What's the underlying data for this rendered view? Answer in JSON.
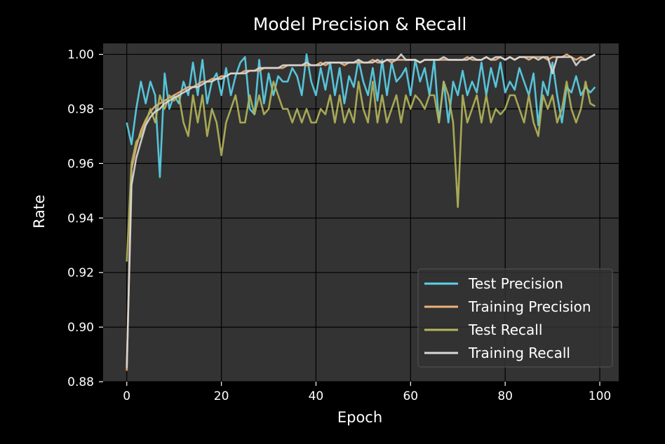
{
  "chart_data": {
    "type": "line",
    "title": "Model Precision & Recall",
    "xlabel": "Epoch",
    "ylabel": "Rate",
    "xlim": [
      -5,
      104
    ],
    "ylim": [
      0.88,
      1.004
    ],
    "xticks": [
      0,
      20,
      40,
      60,
      80,
      100
    ],
    "xtick_labels": [
      "0",
      "20",
      "40",
      "60",
      "80",
      "100"
    ],
    "yticks": [
      0.88,
      0.9,
      0.92,
      0.94,
      0.96,
      0.98,
      1.0
    ],
    "ytick_labels": [
      "0.88",
      "0.90",
      "0.92",
      "0.94",
      "0.96",
      "0.98",
      "1.00"
    ],
    "grid": true,
    "legend_position": "lower-right",
    "background": "#333333",
    "figure_background": "#000000",
    "x": [
      0,
      1,
      2,
      3,
      4,
      5,
      6,
      7,
      8,
      9,
      10,
      11,
      12,
      13,
      14,
      15,
      16,
      17,
      18,
      19,
      20,
      21,
      22,
      23,
      24,
      25,
      26,
      27,
      28,
      29,
      30,
      31,
      32,
      33,
      34,
      35,
      36,
      37,
      38,
      39,
      40,
      41,
      42,
      43,
      44,
      45,
      46,
      47,
      48,
      49,
      50,
      51,
      52,
      53,
      54,
      55,
      56,
      57,
      58,
      59,
      60,
      61,
      62,
      63,
      64,
      65,
      66,
      67,
      68,
      69,
      70,
      71,
      72,
      73,
      74,
      75,
      76,
      77,
      78,
      79,
      80,
      81,
      82,
      83,
      84,
      85,
      86,
      87,
      88,
      89,
      90,
      91,
      92,
      93,
      94,
      95,
      96,
      97,
      98,
      99
    ],
    "series": [
      {
        "name": "Test Precision",
        "color": "#5bd3ea",
        "values": [
          0.975,
          0.967,
          0.98,
          0.99,
          0.982,
          0.99,
          0.985,
          0.955,
          0.993,
          0.98,
          0.985,
          0.982,
          0.99,
          0.985,
          0.997,
          0.985,
          0.998,
          0.982,
          0.99,
          0.993,
          0.985,
          0.995,
          0.985,
          0.992,
          0.997,
          0.999,
          0.98,
          0.978,
          0.998,
          0.982,
          0.993,
          0.985,
          0.992,
          0.99,
          0.99,
          0.995,
          0.992,
          0.985,
          1.0,
          0.99,
          0.985,
          0.995,
          0.987,
          0.997,
          0.985,
          0.995,
          0.982,
          0.992,
          0.988,
          0.998,
          0.99,
          0.985,
          0.995,
          0.983,
          0.998,
          0.985,
          0.997,
          0.99,
          0.992,
          0.995,
          0.985,
          0.998,
          0.99,
          0.995,
          0.985,
          0.998,
          0.975,
          0.99,
          0.975,
          0.99,
          0.985,
          0.994,
          0.985,
          0.99,
          0.986,
          0.997,
          0.985,
          0.995,
          0.988,
          0.997,
          0.986,
          0.99,
          0.987,
          0.995,
          0.99,
          0.985,
          0.993,
          0.974,
          0.99,
          0.985,
          0.997,
          0.985,
          0.975,
          0.988,
          0.986,
          0.992,
          0.985,
          0.988,
          0.986,
          0.988
        ]
      },
      {
        "name": "Training Precision",
        "color": "#f0b27a",
        "values": [
          0.884,
          0.958,
          0.966,
          0.972,
          0.976,
          0.979,
          0.981,
          0.982,
          0.983,
          0.984,
          0.985,
          0.986,
          0.987,
          0.988,
          0.988,
          0.989,
          0.99,
          0.99,
          0.991,
          0.991,
          0.992,
          0.992,
          0.993,
          0.993,
          0.993,
          0.994,
          0.994,
          0.994,
          0.994,
          0.995,
          0.995,
          0.995,
          0.995,
          0.995,
          0.996,
          0.996,
          0.996,
          0.996,
          0.996,
          0.996,
          0.996,
          0.997,
          0.996,
          0.997,
          0.997,
          0.997,
          0.996,
          0.997,
          0.997,
          0.997,
          0.997,
          0.997,
          0.998,
          0.997,
          0.997,
          0.998,
          0.997,
          0.998,
          0.998,
          0.998,
          0.998,
          0.998,
          0.997,
          0.998,
          0.998,
          0.998,
          0.998,
          0.998,
          0.998,
          0.998,
          0.998,
          0.998,
          0.999,
          0.998,
          0.998,
          0.998,
          0.999,
          0.998,
          0.998,
          0.999,
          0.998,
          0.999,
          0.998,
          0.999,
          0.999,
          0.998,
          0.999,
          0.999,
          0.999,
          0.998,
          0.999,
          0.999,
          0.999,
          1.0,
          0.999,
          0.998,
          0.999,
          0.998,
          0.999,
          1.0
        ]
      },
      {
        "name": "Test Recall",
        "color": "#b5b55a",
        "values": [
          0.924,
          0.96,
          0.968,
          0.97,
          0.975,
          0.98,
          0.975,
          0.985,
          0.98,
          0.985,
          0.983,
          0.985,
          0.975,
          0.97,
          0.985,
          0.975,
          0.985,
          0.97,
          0.98,
          0.975,
          0.963,
          0.975,
          0.98,
          0.985,
          0.975,
          0.975,
          0.985,
          0.978,
          0.985,
          0.978,
          0.98,
          0.99,
          0.985,
          0.98,
          0.98,
          0.975,
          0.98,
          0.975,
          0.98,
          0.975,
          0.975,
          0.98,
          0.978,
          0.985,
          0.975,
          0.985,
          0.975,
          0.98,
          0.975,
          0.99,
          0.98,
          0.975,
          0.99,
          0.975,
          0.985,
          0.975,
          0.98,
          0.985,
          0.975,
          0.985,
          0.98,
          0.985,
          0.983,
          0.98,
          0.985,
          0.985,
          0.975,
          0.99,
          0.985,
          0.975,
          0.944,
          0.985,
          0.975,
          0.98,
          0.985,
          0.975,
          0.985,
          0.975,
          0.98,
          0.978,
          0.98,
          0.985,
          0.985,
          0.98,
          0.975,
          0.985,
          0.975,
          0.97,
          0.985,
          0.98,
          0.985,
          0.975,
          0.98,
          0.99,
          0.98,
          0.975,
          0.98,
          0.99,
          0.982,
          0.981
        ]
      },
      {
        "name": "Training Recall",
        "color": "#d9d9d9",
        "values": [
          0.885,
          0.952,
          0.962,
          0.968,
          0.974,
          0.977,
          0.979,
          0.98,
          0.982,
          0.983,
          0.984,
          0.985,
          0.986,
          0.987,
          0.988,
          0.988,
          0.989,
          0.99,
          0.99,
          0.991,
          0.991,
          0.992,
          0.993,
          0.993,
          0.993,
          0.993,
          0.994,
          0.994,
          0.995,
          0.995,
          0.995,
          0.995,
          0.995,
          0.996,
          0.996,
          0.996,
          0.996,
          0.996,
          0.997,
          0.996,
          0.996,
          0.996,
          0.997,
          0.997,
          0.997,
          0.997,
          0.997,
          0.997,
          0.997,
          0.998,
          0.997,
          0.997,
          0.997,
          0.998,
          0.997,
          0.998,
          0.998,
          0.998,
          1.0,
          0.998,
          0.998,
          0.998,
          0.997,
          0.998,
          0.998,
          0.998,
          0.998,
          0.999,
          0.998,
          0.998,
          0.998,
          0.998,
          0.998,
          0.999,
          0.998,
          0.998,
          0.999,
          0.998,
          0.999,
          0.999,
          0.998,
          0.999,
          0.998,
          0.999,
          0.999,
          0.999,
          0.999,
          0.998,
          0.999,
          0.999,
          0.993,
          0.999,
          0.999,
          0.999,
          0.999,
          0.996,
          0.998,
          0.998,
          0.999,
          1.0
        ]
      }
    ]
  }
}
